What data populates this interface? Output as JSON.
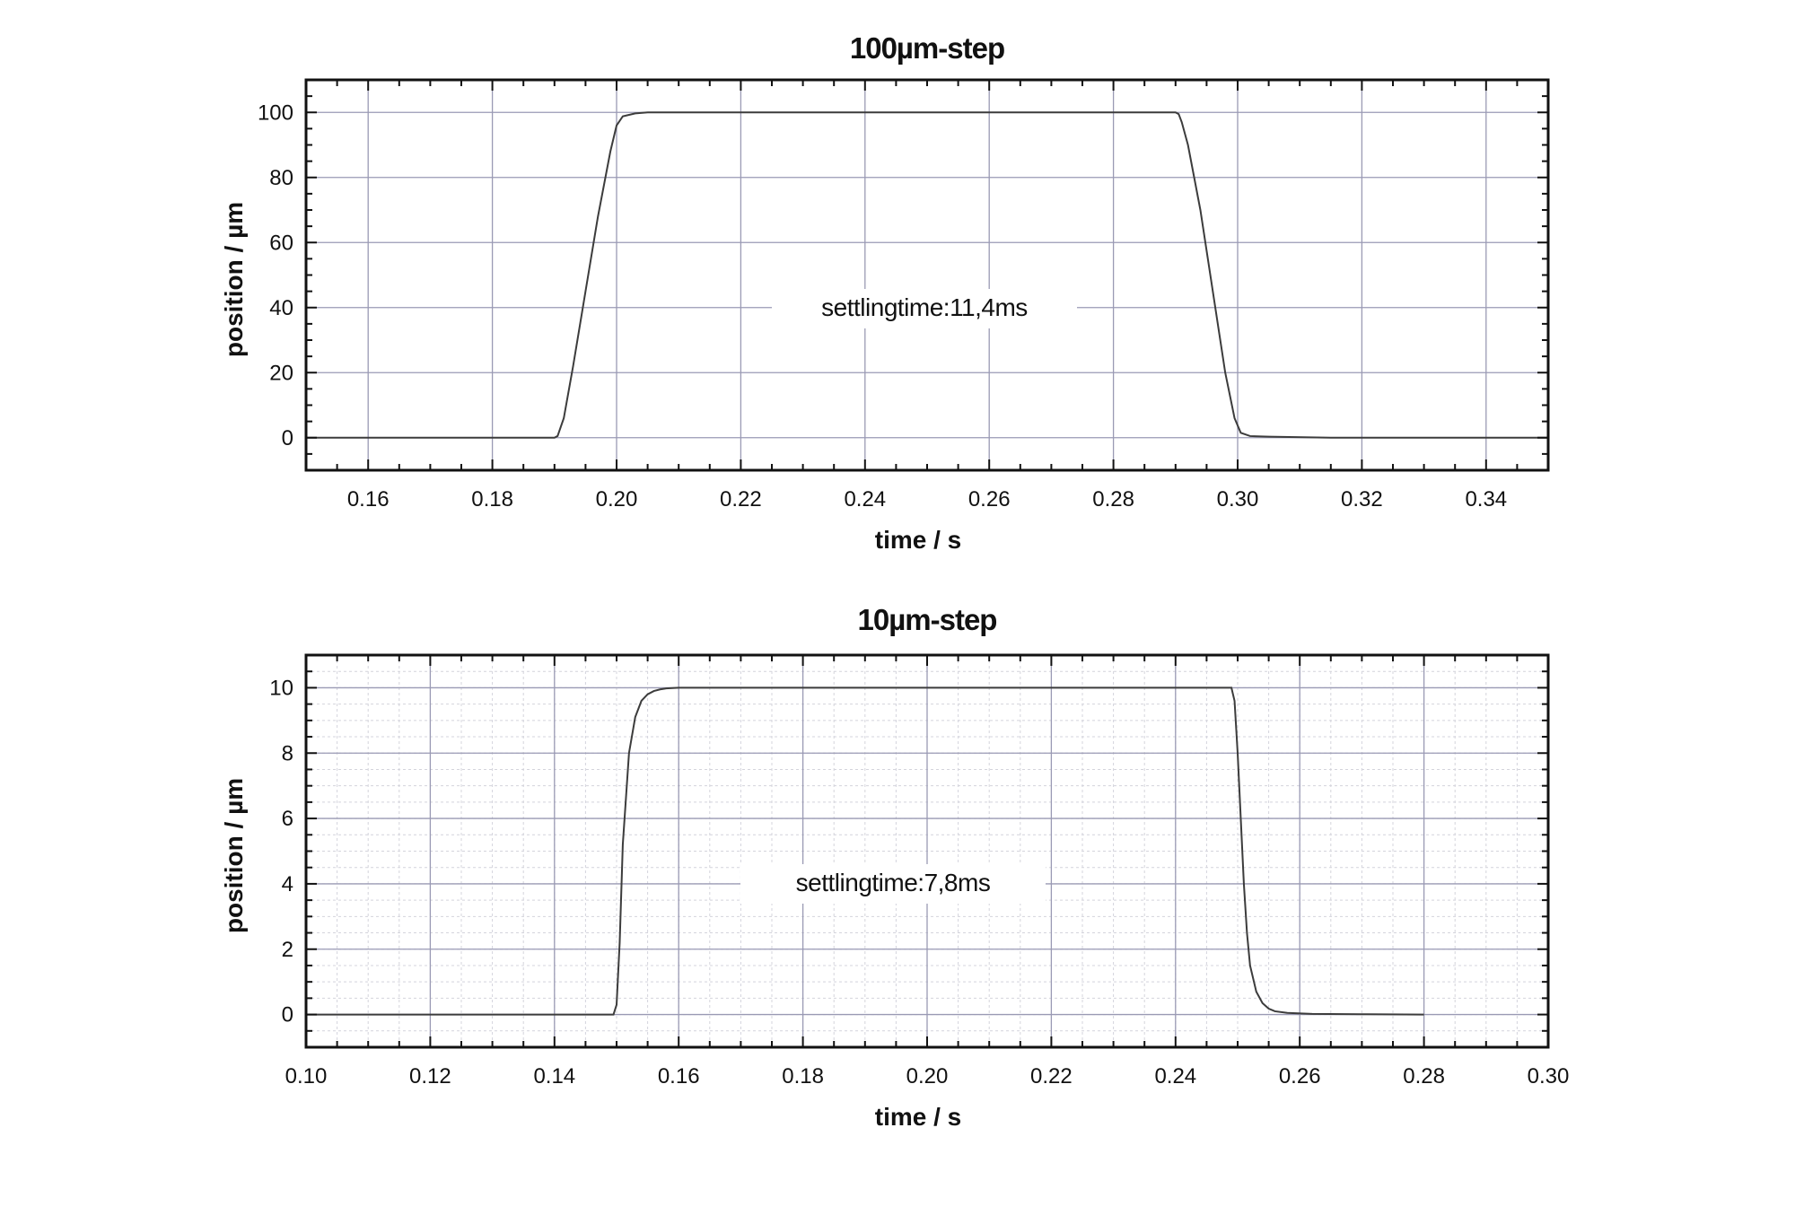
{
  "chart_data": [
    {
      "type": "line",
      "title": "100µm-step",
      "xlabel": "time  / s",
      "ylabel": "position / µm",
      "xlim": [
        0.15,
        0.35
      ],
      "ylim": [
        -10,
        110
      ],
      "xticks": [
        "0.16",
        "0.18",
        "0.20",
        "0.22",
        "0.24",
        "0.26",
        "0.28",
        "0.30",
        "0.32",
        "0.34"
      ],
      "yticks": [
        "0",
        "20",
        "40",
        "60",
        "80",
        "100"
      ],
      "minor_grid": false,
      "grid": true,
      "annotation": "settlingtime:11,4ms",
      "series": [
        {
          "x": [
            0.15,
            0.19,
            0.1905,
            0.1915,
            0.193,
            0.195,
            0.197,
            0.199,
            0.2,
            0.201,
            0.203,
            0.205,
            0.215,
            0.25,
            0.29,
            0.2905,
            0.291,
            0.292,
            0.294,
            0.296,
            0.298,
            0.2995,
            0.3005,
            0.302,
            0.305,
            0.315,
            0.35
          ],
          "y": [
            0,
            0,
            0.5,
            6,
            22,
            45,
            68,
            88,
            96,
            98.8,
            99.7,
            100,
            100,
            100,
            100,
            99.5,
            97,
            90,
            70,
            45,
            20,
            6,
            1.5,
            0.5,
            0.3,
            0,
            0
          ]
        }
      ]
    },
    {
      "type": "line",
      "title": "10µm-step",
      "xlabel": "time  / s",
      "ylabel": "position / µm",
      "xlim": [
        0.1,
        0.3
      ],
      "ylim": [
        -1,
        11
      ],
      "xticks": [
        "0.10",
        "0.12",
        "0.14",
        "0.16",
        "0.18",
        "0.20",
        "0.22",
        "0.24",
        "0.26",
        "0.28",
        "0.30"
      ],
      "yticks": [
        "0",
        "2",
        "4",
        "6",
        "8",
        "10"
      ],
      "minor_grid": true,
      "grid": true,
      "annotation": "settlingtime:7,8ms",
      "series": [
        {
          "x": [
            0.1,
            0.1495,
            0.15,
            0.1505,
            0.151,
            0.152,
            0.153,
            0.154,
            0.155,
            0.156,
            0.157,
            0.158,
            0.16,
            0.165,
            0.2,
            0.249,
            0.2495,
            0.25,
            0.2505,
            0.251,
            0.2515,
            0.252,
            0.253,
            0.254,
            0.255,
            0.256,
            0.258,
            0.262,
            0.27,
            0.28
          ],
          "y": [
            0,
            0,
            0.3,
            2.2,
            5.2,
            8.0,
            9.1,
            9.6,
            9.8,
            9.9,
            9.95,
            9.98,
            10,
            10,
            10,
            10,
            9.6,
            8.0,
            6.0,
            4.0,
            2.5,
            1.5,
            0.7,
            0.35,
            0.18,
            0.1,
            0.05,
            0.02,
            0.01,
            0
          ]
        }
      ]
    }
  ]
}
